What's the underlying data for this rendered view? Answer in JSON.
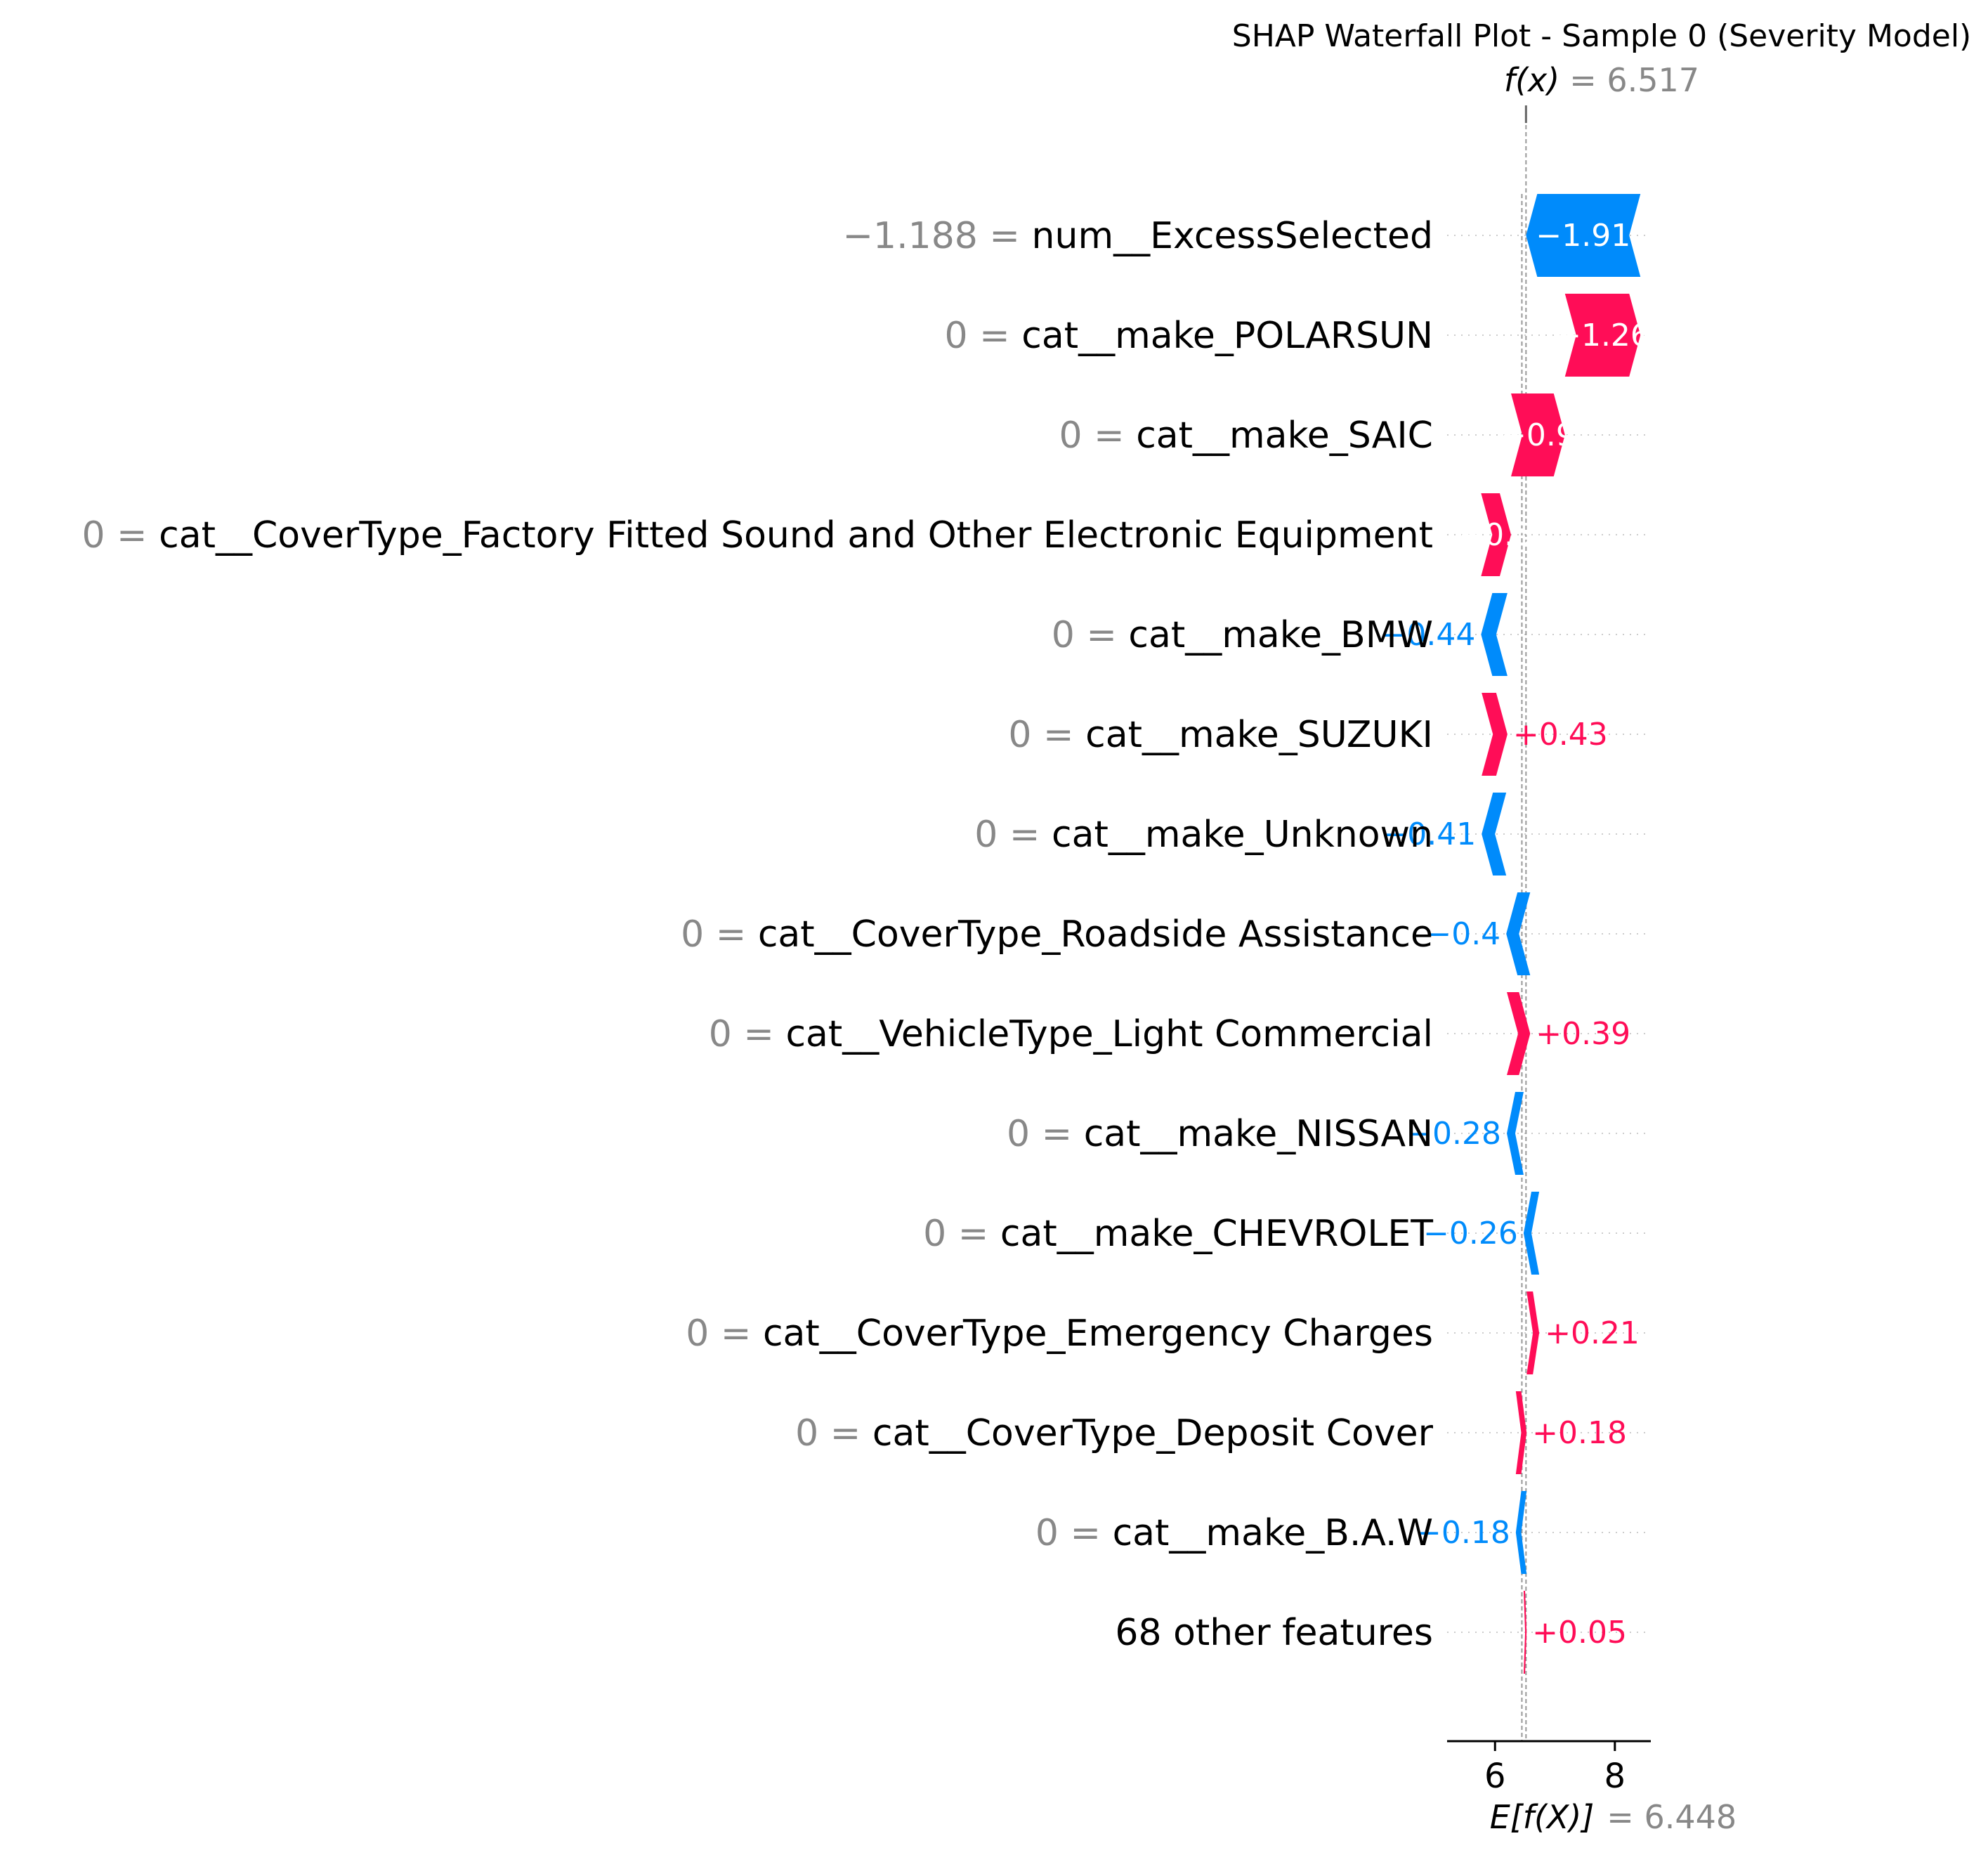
{
  "chart_data": {
    "type": "waterfall",
    "title": "SHAP Waterfall Plot - Sample 0 (Severity Model)",
    "fx_label": "f(x)",
    "fx_value_text": "= 6.517",
    "fx_value": 6.517,
    "base_label": "E[f(X)]",
    "base_value_text": "= 6.448",
    "base_value": 6.448,
    "xlim": [
      5.2,
      8.6
    ],
    "xticks": [
      6,
      8
    ],
    "xtick_labels": [
      "6",
      "8"
    ],
    "colors": {
      "positive": "#ff0d57",
      "negative": "#008bfb",
      "value_text": "#888888",
      "grid": "#cccccc"
    },
    "features": [
      {
        "value": "−1.188",
        "name": "num__ExcessSelected",
        "shap": -1.91,
        "label": "−1.91"
      },
      {
        "value": "0",
        "name": "cat__make_POLARSUN",
        "shap": 1.26,
        "label": "+1.26"
      },
      {
        "value": "0",
        "name": "cat__make_SAIC",
        "shap": 0.9,
        "label": "+0.9"
      },
      {
        "value": "0",
        "name": "cat__CoverType_Factory Fitted Sound and Other Electronic Equipment",
        "shap": 0.5,
        "label": "+0.5"
      },
      {
        "value": "0",
        "name": "cat__make_BMW",
        "shap": -0.44,
        "label": "−0.44"
      },
      {
        "value": "0",
        "name": "cat__make_SUZUKI",
        "shap": 0.43,
        "label": "+0.43"
      },
      {
        "value": "0",
        "name": "cat__make_Unknown",
        "shap": -0.41,
        "label": "−0.41"
      },
      {
        "value": "0",
        "name": "cat__CoverType_Roadside Assistance",
        "shap": -0.4,
        "label": "−0.4"
      },
      {
        "value": "0",
        "name": "cat__VehicleType_Light Commercial",
        "shap": 0.39,
        "label": "+0.39"
      },
      {
        "value": "0",
        "name": "cat__make_NISSAN",
        "shap": -0.28,
        "label": "−0.28"
      },
      {
        "value": "0",
        "name": "cat__make_CHEVROLET",
        "shap": -0.26,
        "label": "−0.26"
      },
      {
        "value": "0",
        "name": "cat__CoverType_Emergency Charges",
        "shap": 0.21,
        "label": "+0.21"
      },
      {
        "value": "0",
        "name": "cat__CoverType_Deposit Cover",
        "shap": 0.18,
        "label": "+0.18"
      },
      {
        "value": "0",
        "name": "cat__make_B.A.W",
        "shap": -0.18,
        "label": "−0.18"
      },
      {
        "value": "",
        "name": "68 other features",
        "shap": 0.05,
        "label": "+0.05"
      }
    ]
  }
}
